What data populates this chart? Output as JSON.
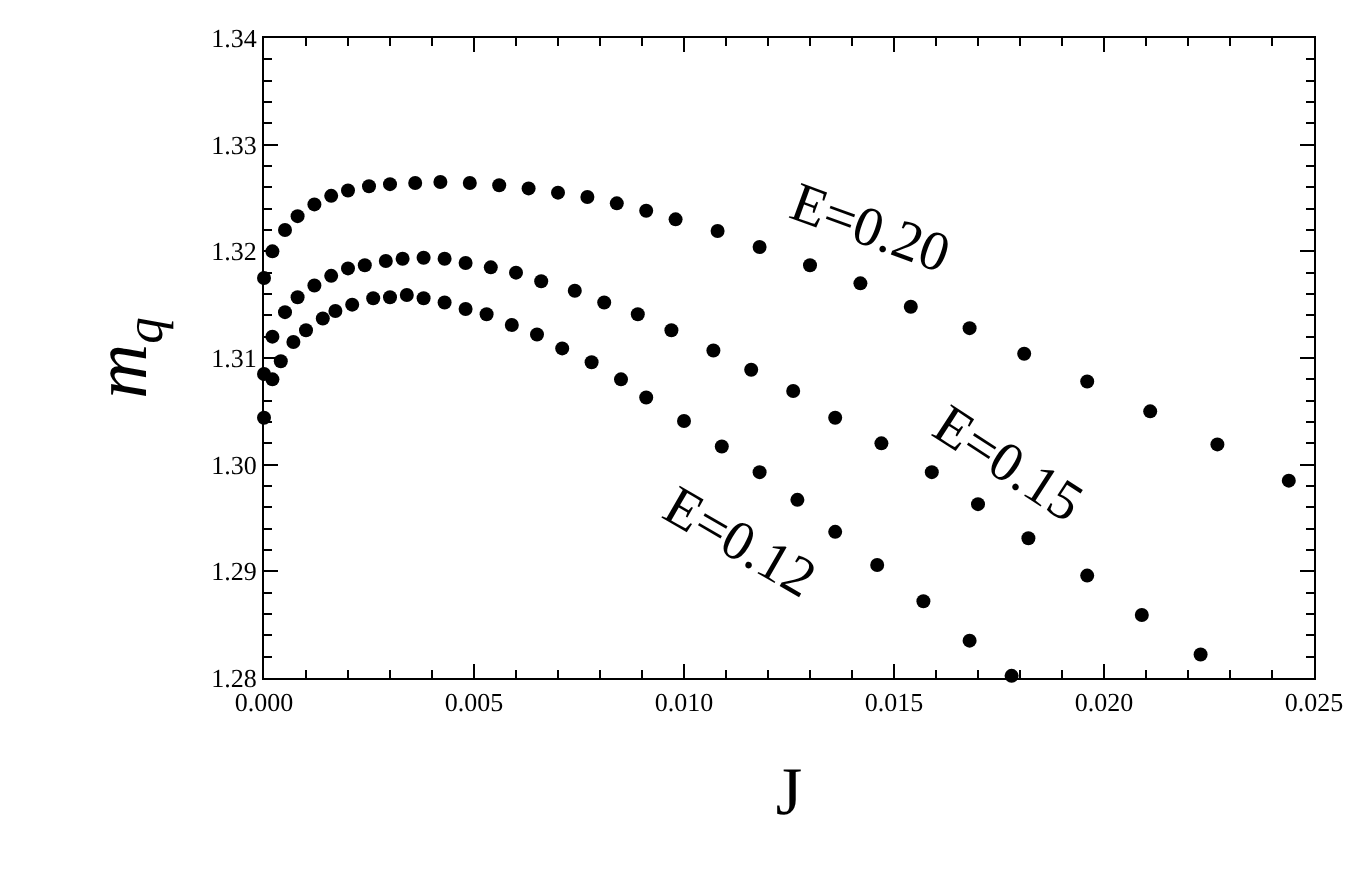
{
  "chart_data": {
    "type": "scatter",
    "xlabel": "J",
    "ylabel": "m$_{q}$",
    "xlim": [
      0,
      0.025
    ],
    "xticks": [
      {
        "value": 0,
        "label": "0.000"
      },
      {
        "value": 0.005,
        "label": "0.005"
      },
      {
        "value": 0.01,
        "label": "0.010"
      },
      {
        "value": 0.015,
        "label": "0.015"
      },
      {
        "value": 0.02,
        "label": "0.020"
      },
      {
        "value": 0.025,
        "label": "0.025"
      }
    ],
    "ylim": [
      1.28,
      1.34
    ],
    "yticks": [
      {
        "value": 1.28,
        "label": "1.28"
      },
      {
        "value": 1.29,
        "label": "1.29"
      },
      {
        "value": 1.3,
        "label": "1.30"
      },
      {
        "value": 1.31,
        "label": "1.31"
      },
      {
        "value": 1.32,
        "label": "1.32"
      },
      {
        "value": 1.33,
        "label": "1.33"
      },
      {
        "value": 1.34,
        "label": "1.34"
      }
    ],
    "marker": "circle",
    "series": [
      {
        "name": "E=0.20",
        "color": "#000000",
        "x": [
          0,
          0.0002,
          0.0005,
          0.0008,
          0.0012,
          0.0016,
          0.002,
          0.0025,
          0.003,
          0.0036,
          0.0042,
          0.0049,
          0.0056,
          0.0063,
          0.007,
          0.0077,
          0.0084,
          0.0091,
          0.0098,
          0.0108,
          0.0118,
          0.013,
          0.0142,
          0.0154,
          0.0168,
          0.0181,
          0.0196,
          0.0211,
          0.0227,
          0.0244
        ],
        "values": [
          1.3175,
          1.32,
          1.322,
          1.3233,
          1.3244,
          1.3252,
          1.3257,
          1.3261,
          1.3263,
          1.3264,
          1.3265,
          1.3264,
          1.3262,
          1.3259,
          1.3255,
          1.3251,
          1.3245,
          1.3238,
          1.323,
          1.3219,
          1.3204,
          1.3187,
          1.317,
          1.3148,
          1.3128,
          1.3104,
          1.3078,
          1.305,
          1.3019,
          1.2985
        ]
      },
      {
        "name": "E=0.15",
        "color": "#000000",
        "x": [
          0,
          0.0002,
          0.0005,
          0.0008,
          0.0012,
          0.0016,
          0.002,
          0.0024,
          0.0029,
          0.0033,
          0.0038,
          0.0043,
          0.0048,
          0.0054,
          0.006,
          0.0066,
          0.0074,
          0.0081,
          0.0089,
          0.0097,
          0.0107,
          0.0116,
          0.0126,
          0.0136,
          0.0147,
          0.0159,
          0.017,
          0.0182,
          0.0196,
          0.0209,
          0.0223
        ],
        "values": [
          1.3085,
          1.312,
          1.3143,
          1.3157,
          1.3168,
          1.3177,
          1.3184,
          1.3187,
          1.3191,
          1.3193,
          1.3194,
          1.3193,
          1.3189,
          1.3185,
          1.318,
          1.3172,
          1.3163,
          1.3152,
          1.3141,
          1.3126,
          1.3107,
          1.3089,
          1.3069,
          1.3044,
          1.302,
          1.2993,
          1.2963,
          1.2931,
          1.2896,
          1.2859,
          1.2822
        ]
      },
      {
        "name": "E=0.12",
        "color": "#000000",
        "x": [
          0,
          0.0002,
          0.0004,
          0.0007,
          0.001,
          0.0014,
          0.0017,
          0.0021,
          0.0026,
          0.003,
          0.0034,
          0.0038,
          0.0043,
          0.0048,
          0.0053,
          0.0059,
          0.0065,
          0.0071,
          0.0078,
          0.0085,
          0.0091,
          0.01,
          0.0109,
          0.0118,
          0.0127,
          0.0136,
          0.0146,
          0.0157,
          0.0168,
          0.0178
        ],
        "values": [
          1.3044,
          1.308,
          1.3097,
          1.3115,
          1.3126,
          1.3137,
          1.3144,
          1.315,
          1.3156,
          1.3157,
          1.3159,
          1.3156,
          1.3152,
          1.3146,
          1.3141,
          1.3131,
          1.3122,
          1.3109,
          1.3096,
          1.308,
          1.3063,
          1.3041,
          1.3017,
          1.2993,
          1.2967,
          1.2937,
          1.2906,
          1.2872,
          1.2835,
          1.2802
        ]
      }
    ]
  }
}
